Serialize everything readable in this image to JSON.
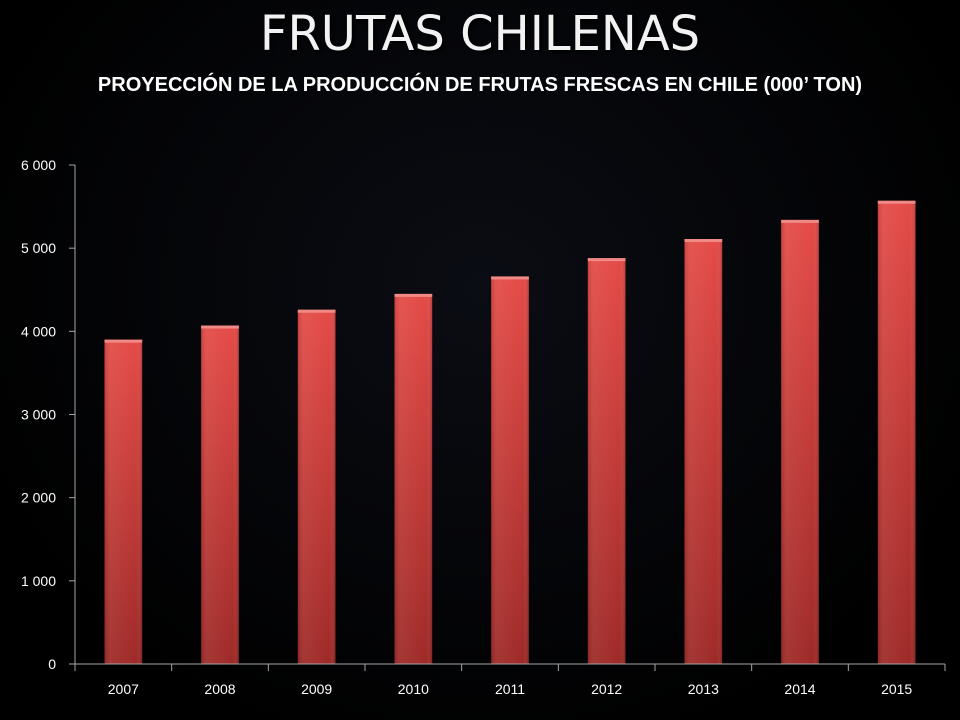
{
  "slide": {
    "title": "FRUTAS CHILENAS",
    "subtitle": "PROYECCIÓN DE LA PRODUCCIÓN DE FRUTAS FRESCAS EN CHILE (000’ TON)"
  },
  "colors": {
    "bar_top": "#e44b47",
    "bar_bottom": "#9e2a28",
    "bar_cap": "#f08a86",
    "axis": "#a6a6a6",
    "text": "#ffffff"
  },
  "chart_data": {
    "type": "bar",
    "categories": [
      "2007",
      "2008",
      "2009",
      "2010",
      "2011",
      "2012",
      "2013",
      "2014",
      "2015"
    ],
    "values": [
      3900,
      4070,
      4260,
      4450,
      4660,
      4880,
      5110,
      5340,
      5570
    ],
    "ylim": [
      0,
      6000
    ],
    "yticks": [
      0,
      1000,
      2000,
      3000,
      4000,
      5000,
      6000
    ],
    "ytick_labels": [
      "0",
      "1 000",
      "2 000",
      "3 000",
      "4 000",
      "5 000",
      "6 000"
    ],
    "grid": false,
    "legend": "none"
  }
}
